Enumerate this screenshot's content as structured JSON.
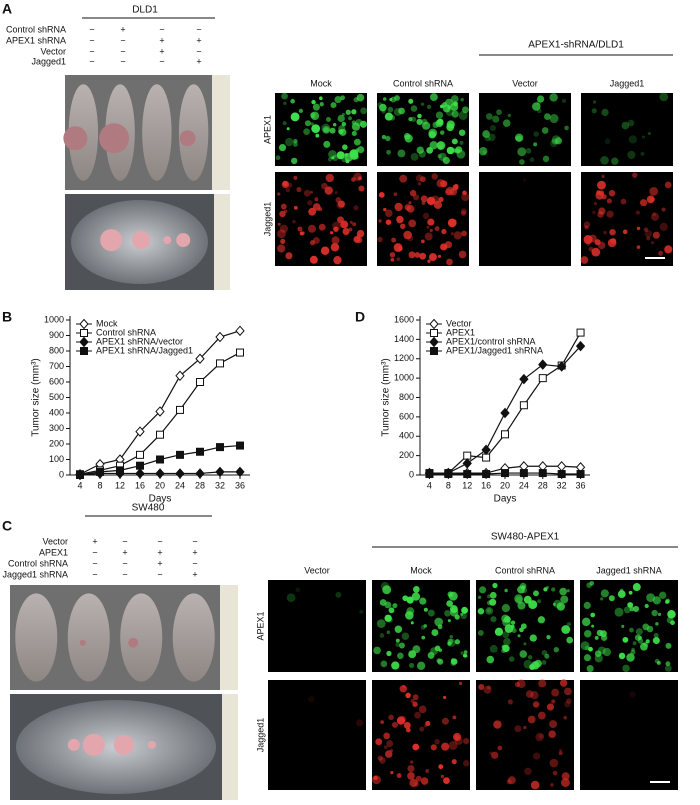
{
  "panel_a": {
    "label": "A",
    "cell_line": "DLD1",
    "rows": [
      {
        "name": "Control shRNA",
        "signs": [
          "−",
          "+",
          "−",
          "−"
        ]
      },
      {
        "name": "APEX1 shRNA",
        "signs": [
          "−",
          "−",
          "+",
          "+"
        ]
      },
      {
        "name": "Vector",
        "signs": [
          "−",
          "−",
          "+",
          "−"
        ]
      },
      {
        "name": "Jagged1",
        "signs": [
          "−",
          "−",
          "−",
          "+"
        ]
      }
    ],
    "group_header": "APEX1-shRNA/DLD1",
    "columns": [
      "Mock",
      "Control shRNA",
      "Vector",
      "Jagged1"
    ],
    "row_labels": [
      "APEX1",
      "Jagged1"
    ]
  },
  "panel_c": {
    "label": "C",
    "cell_line": "SW480",
    "rows": [
      {
        "name": "Vector",
        "signs": [
          "+",
          "−",
          "−",
          "−"
        ]
      },
      {
        "name": "APEX1",
        "signs": [
          "−",
          "+",
          "+",
          "+"
        ]
      },
      {
        "name": "Control shRNA",
        "signs": [
          "−",
          "−",
          "+",
          "−"
        ]
      },
      {
        "name": "Jagged1 shRNA",
        "signs": [
          "−",
          "−",
          "−",
          "+"
        ]
      }
    ],
    "group_header": "SW480-APEX1",
    "columns": [
      "Vector",
      "Mock",
      "Control shRNA",
      "Jagged1 shRNA"
    ],
    "row_labels": [
      "APEX1",
      "Jagged1"
    ]
  },
  "chart_data": [
    {
      "type": "line",
      "panel_label": "B",
      "xlabel": "Days",
      "ylabel": "Tumor size (mm³)",
      "x": [
        4,
        8,
        12,
        16,
        20,
        24,
        28,
        32,
        36
      ],
      "xlim": [
        2,
        38
      ],
      "xticks": [
        4,
        8,
        12,
        16,
        20,
        24,
        28,
        32,
        36
      ],
      "ylim": [
        0,
        1000
      ],
      "yticks": [
        0,
        100,
        200,
        300,
        400,
        500,
        600,
        700,
        800,
        900,
        1000
      ],
      "legend": "top-left",
      "series": [
        {
          "name": "Mock",
          "marker": "diamond-open",
          "color": "#111111",
          "values": [
            5,
            70,
            100,
            280,
            410,
            640,
            750,
            890,
            930
          ]
        },
        {
          "name": "Control shRNA",
          "marker": "square-open",
          "color": "#111111",
          "values": [
            5,
            30,
            60,
            130,
            260,
            420,
            600,
            720,
            790
          ]
        },
        {
          "name": "APEX1 shRNA/vector",
          "marker": "diamond-filled",
          "color": "#111111",
          "values": [
            0,
            10,
            10,
            10,
            10,
            10,
            10,
            20,
            20
          ]
        },
        {
          "name": "APEX1 shRNA/Jagged1",
          "marker": "square-filled",
          "color": "#111111",
          "values": [
            0,
            20,
            30,
            60,
            100,
            130,
            150,
            180,
            190
          ]
        }
      ]
    },
    {
      "type": "line",
      "panel_label": "D",
      "xlabel": "Days",
      "ylabel": "Tumor size (mm³)",
      "x": [
        4,
        8,
        12,
        16,
        20,
        24,
        28,
        32,
        36
      ],
      "xlim": [
        2,
        38
      ],
      "xticks": [
        4,
        8,
        12,
        16,
        20,
        24,
        28,
        32,
        36
      ],
      "ylim": [
        0,
        1600
      ],
      "yticks": [
        0,
        200,
        400,
        600,
        800,
        1000,
        1200,
        1400,
        1600
      ],
      "legend": "top-left",
      "series": [
        {
          "name": "Vector",
          "marker": "diamond-open",
          "color": "#111111",
          "values": [
            20,
            20,
            20,
            20,
            70,
            90,
            90,
            90,
            80
          ]
        },
        {
          "name": "APEX1",
          "marker": "square-open",
          "color": "#111111",
          "values": [
            20,
            20,
            200,
            180,
            420,
            720,
            1000,
            1130,
            1470
          ]
        },
        {
          "name": "APEX1/control shRNA",
          "marker": "diamond-filled",
          "color": "#111111",
          "values": [
            20,
            20,
            120,
            260,
            640,
            990,
            1140,
            1120,
            1330
          ]
        },
        {
          "name": "APEX1/Jagged1 shRNA",
          "marker": "square-filled",
          "color": "#111111",
          "values": [
            10,
            10,
            10,
            10,
            20,
            20,
            20,
            10,
            10
          ]
        }
      ]
    }
  ]
}
